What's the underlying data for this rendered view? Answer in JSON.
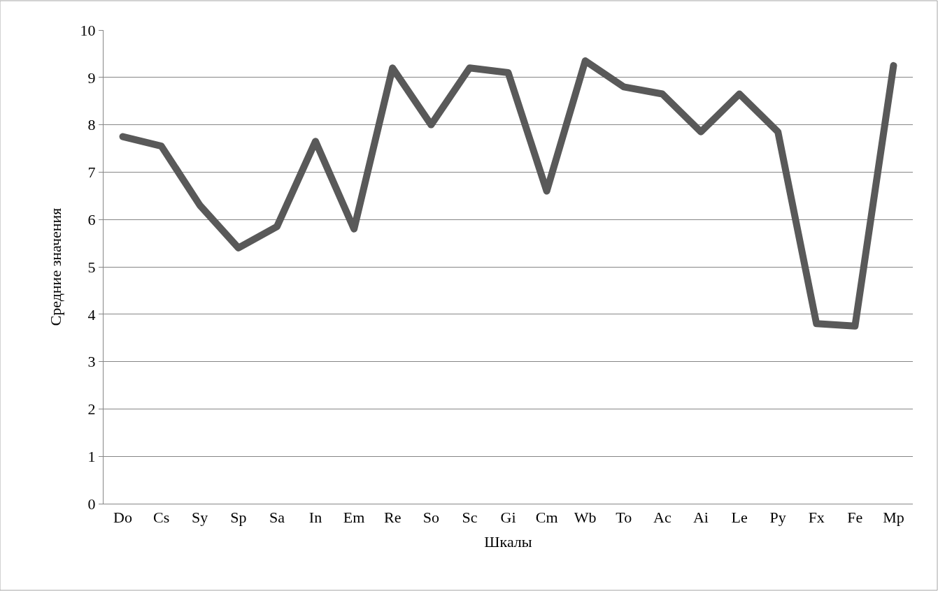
{
  "chart_data": {
    "type": "line",
    "xlabel": "Шкалы",
    "ylabel": "Средние значения",
    "categories": [
      "Do",
      "Cs",
      "Sy",
      "Sp",
      "Sa",
      "In",
      "Em",
      "Re",
      "So",
      "Sc",
      "Gi",
      "Cm",
      "Wb",
      "To",
      "Ac",
      "Ai",
      "Le",
      "Py",
      "Fx",
      "Fe",
      "Mp"
    ],
    "series": [
      {
        "color": "#595959",
        "values": [
          7.75,
          7.55,
          6.3,
          5.4,
          5.85,
          7.65,
          5.8,
          9.2,
          8.0,
          9.2,
          9.1,
          6.6,
          9.35,
          8.8,
          8.65,
          7.85,
          8.65,
          7.85,
          3.8,
          3.75,
          9.25
        ]
      }
    ],
    "ylim": [
      0,
      10
    ],
    "yticks": [
      0,
      1,
      2,
      3,
      4,
      5,
      6,
      7,
      8,
      9,
      10
    ],
    "grid": "y",
    "legend": false,
    "line_style": "solid"
  }
}
